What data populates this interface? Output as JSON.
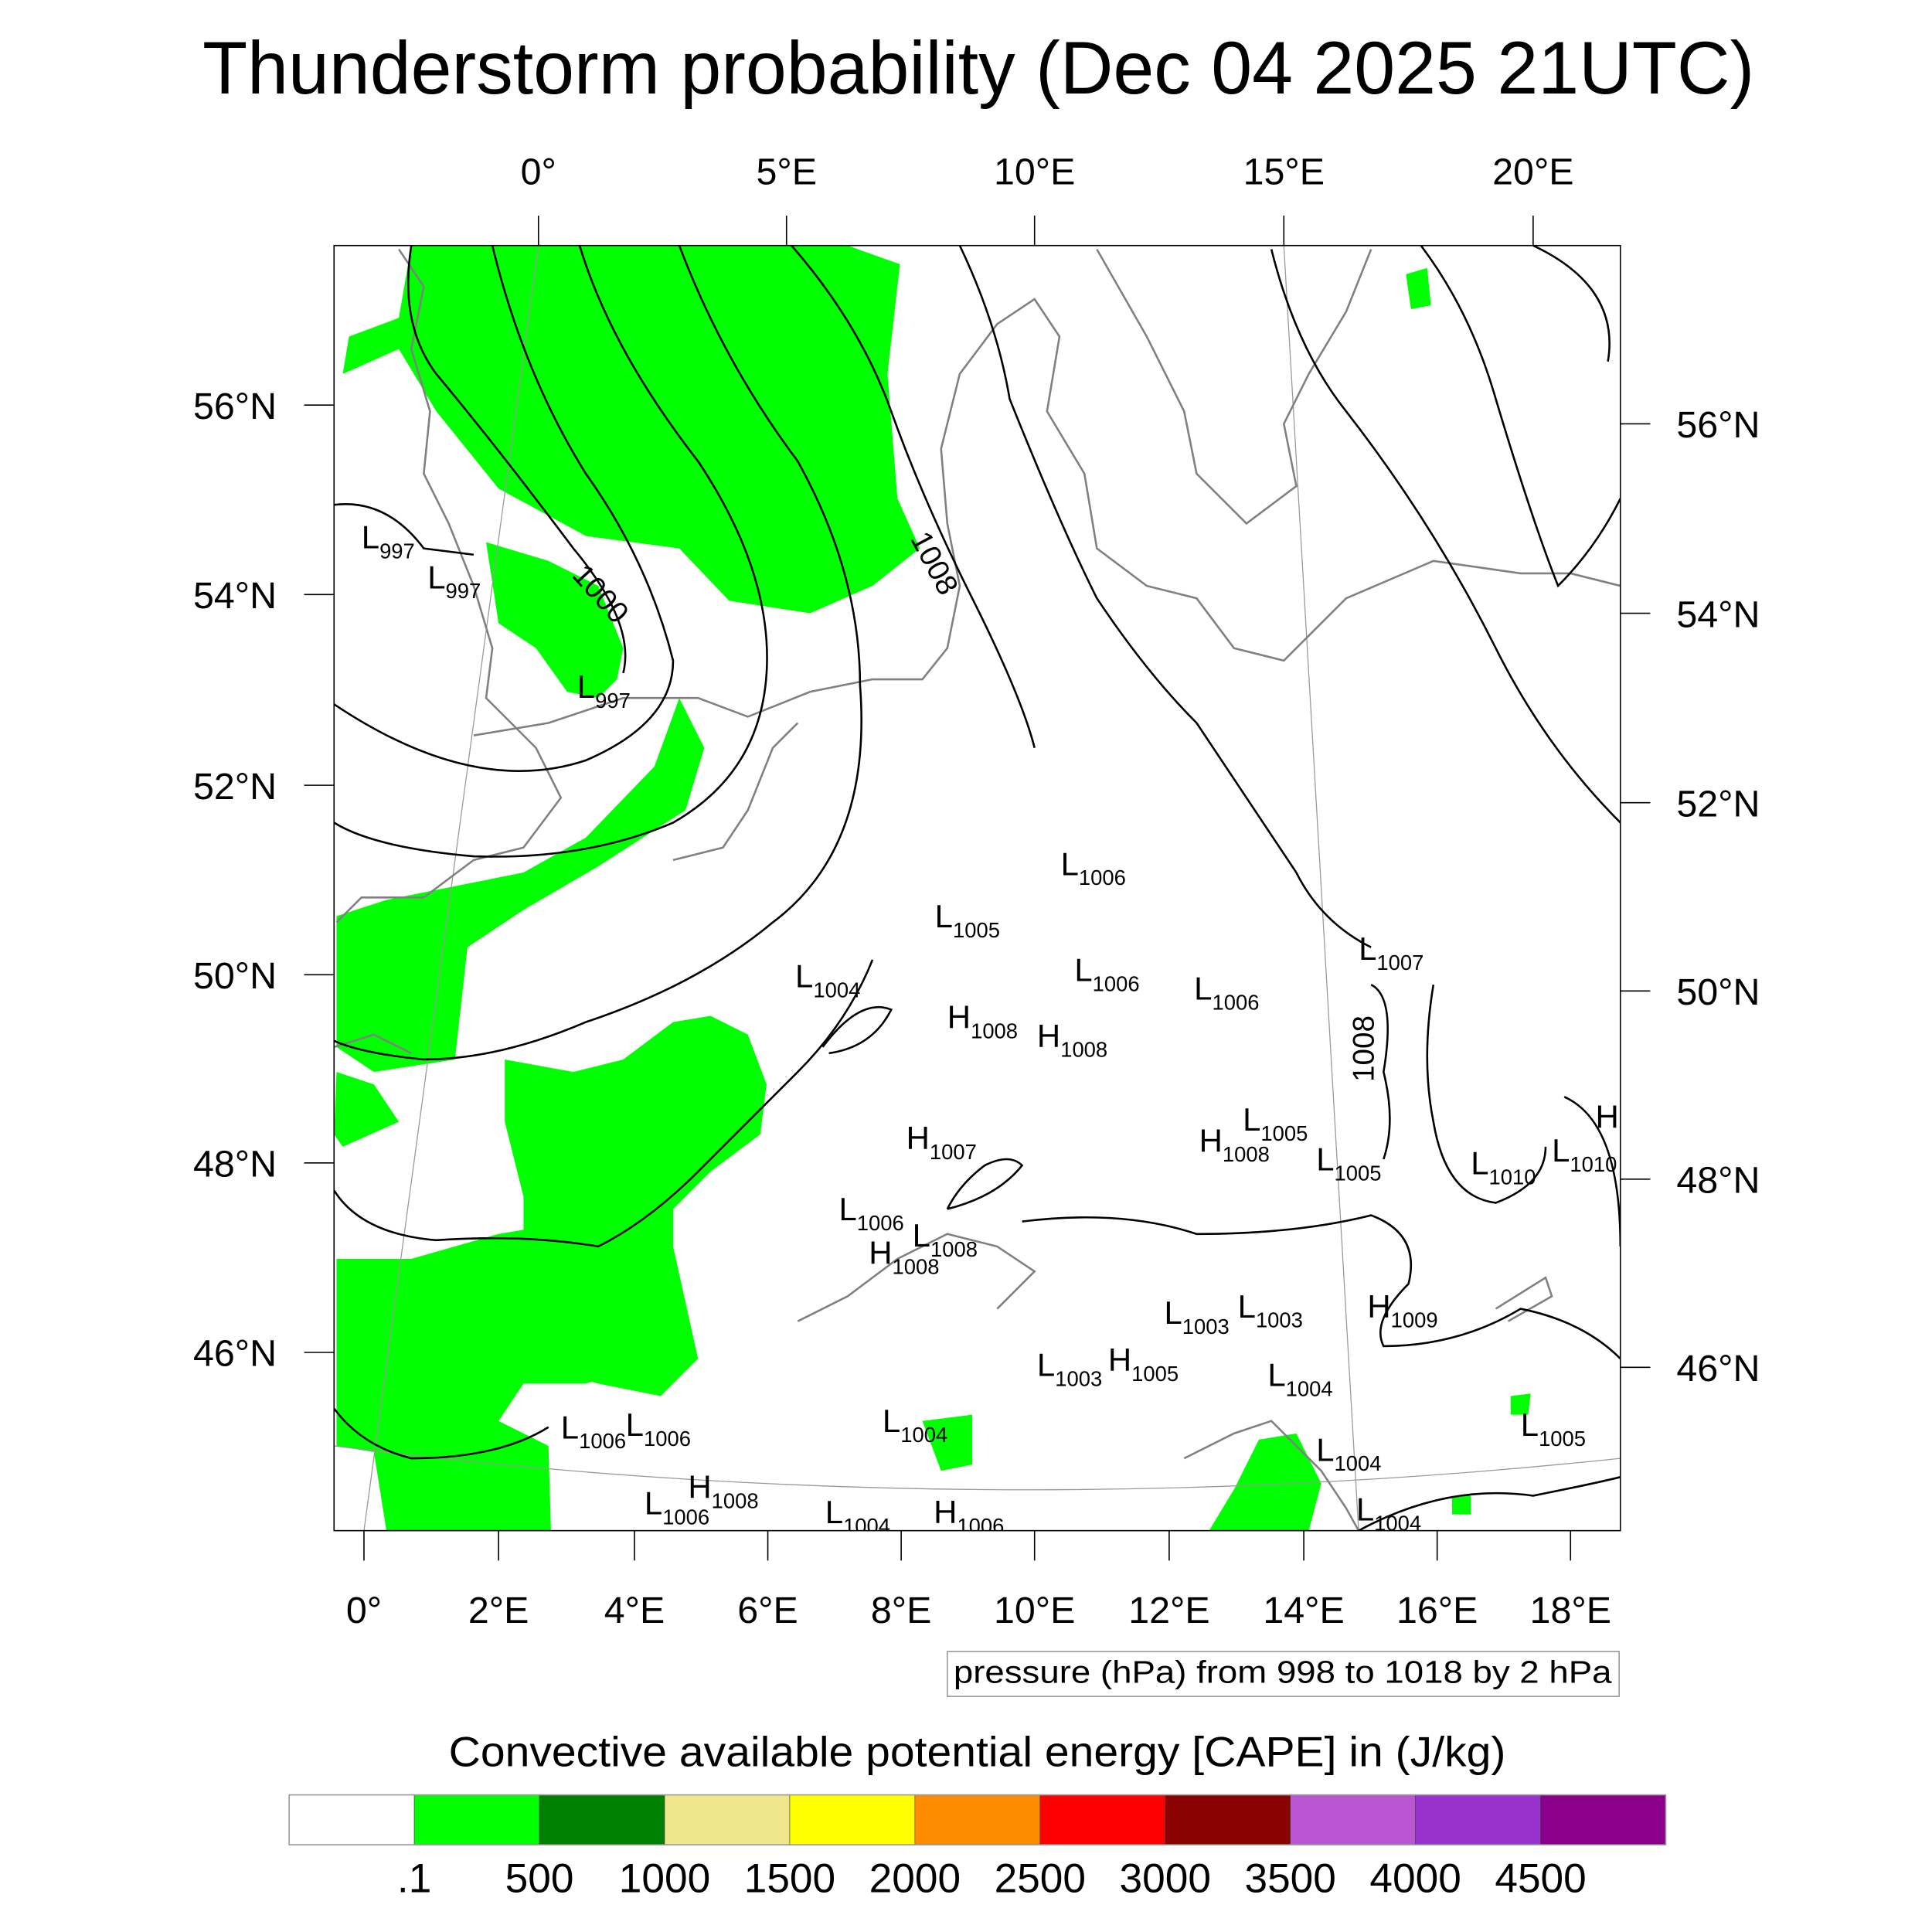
{
  "chart_data": {
    "type": "heatmap",
    "title": "Thunderstorm probability (Dec 04 2025 21UTC)",
    "top_lon_ticks": [
      "0°",
      "5°E",
      "10°E",
      "15°E",
      "20°E"
    ],
    "bottom_lon_ticks": [
      "0°",
      "2°E",
      "4°E",
      "6°E",
      "8°E",
      "10°E",
      "12°E",
      "14°E",
      "16°E",
      "18°E"
    ],
    "left_lat_ticks": [
      "56°N",
      "54°N",
      "52°N",
      "50°N",
      "48°N",
      "46°N"
    ],
    "right_lat_ticks": [
      "56°N",
      "54°N",
      "52°N",
      "50°N",
      "48°N",
      "46°N"
    ],
    "contour_info": "pressure (hPa) from 998 to 1018 by 2 hPa",
    "contour_labels": [
      "1000",
      "1008",
      "1008"
    ],
    "pressure_centers": [
      {
        "type": "L",
        "value": "997"
      },
      {
        "type": "L",
        "value": "997"
      },
      {
        "type": "L",
        "value": "997"
      },
      {
        "type": "L",
        "value": "1006"
      },
      {
        "type": "L",
        "value": "1005"
      },
      {
        "type": "L",
        "value": "1004"
      },
      {
        "type": "L",
        "value": "1006"
      },
      {
        "type": "L",
        "value": "1006"
      },
      {
        "type": "L",
        "value": "1007"
      },
      {
        "type": "H",
        "value": "1008"
      },
      {
        "type": "H",
        "value": "1008"
      },
      {
        "type": "H",
        "value": "1007"
      },
      {
        "type": "L",
        "value": "1005"
      },
      {
        "type": "H",
        "value": "1008"
      },
      {
        "type": "L",
        "value": "1005"
      },
      {
        "type": "L",
        "value": "1010"
      },
      {
        "type": "L",
        "value": "1010"
      },
      {
        "type": "H",
        "value": ""
      },
      {
        "type": "L",
        "value": "1006"
      },
      {
        "type": "L",
        "value": "1008"
      },
      {
        "type": "H",
        "value": "1008"
      },
      {
        "type": "L",
        "value": "1003"
      },
      {
        "type": "L",
        "value": "1003"
      },
      {
        "type": "H",
        "value": "1009"
      },
      {
        "type": "L",
        "value": "1003"
      },
      {
        "type": "H",
        "value": "1005"
      },
      {
        "type": "L",
        "value": "1004"
      },
      {
        "type": "L",
        "value": "1006"
      },
      {
        "type": "L",
        "value": "1006"
      },
      {
        "type": "L",
        "value": "1004"
      },
      {
        "type": "L",
        "value": "1004"
      },
      {
        "type": "L",
        "value": "1005"
      },
      {
        "type": "H",
        "value": "1008"
      },
      {
        "type": "L",
        "value": "1006"
      },
      {
        "type": "L",
        "value": "1004"
      },
      {
        "type": "H",
        "value": "1006"
      },
      {
        "type": "L",
        "value": "1004"
      }
    ],
    "colorbar": {
      "title": "Convective available potential energy [CAPE] in (J/kg)",
      "colors": [
        "#ffffff",
        "#00ff00",
        "#008000",
        "#f0e68c",
        "#ffff00",
        "#ff8c00",
        "#ff0000",
        "#8b0000",
        "#ba55d3",
        "#9932cc",
        "#8b008b"
      ],
      "labels": [
        ".1",
        "500",
        "1000",
        "1500",
        "2000",
        "2500",
        "3000",
        "3500",
        "4000",
        "4500"
      ]
    }
  }
}
